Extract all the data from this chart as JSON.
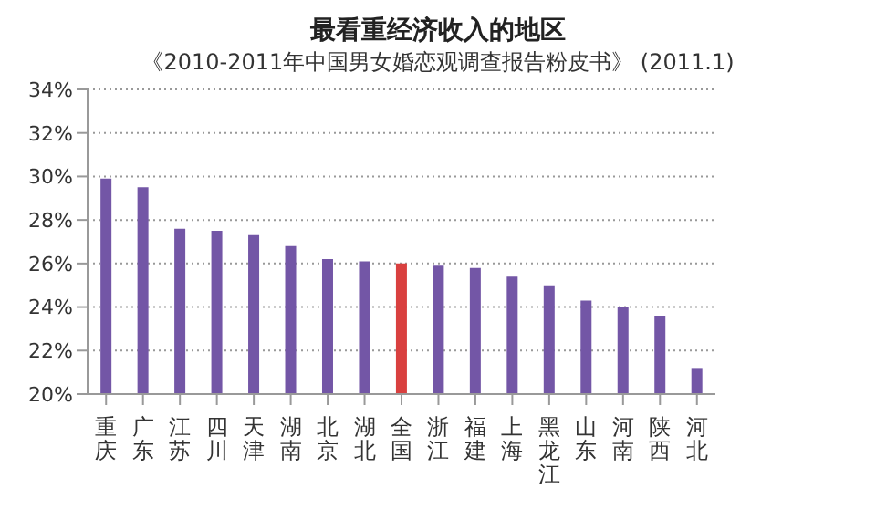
{
  "chart_data": {
    "type": "bar",
    "title": "最看重经济收入的地区",
    "subtitle": "《2010-2011年中国男女婚恋观调查报告粉皮书》 (2011.1)",
    "categories": [
      "重庆",
      "广东",
      "江苏",
      "四川",
      "天津",
      "湖南",
      "北京",
      "湖北",
      "全国",
      "浙江",
      "福建",
      "上海",
      "黑龙江",
      "山东",
      "河南",
      "陕西",
      "河北"
    ],
    "values": [
      29.9,
      29.5,
      27.6,
      27.5,
      27.3,
      26.8,
      26.2,
      26.1,
      26.0,
      25.9,
      25.8,
      25.4,
      25.0,
      24.3,
      24.0,
      23.6,
      21.2
    ],
    "colors": [
      "#7356a6",
      "#7356a6",
      "#7356a6",
      "#7356a6",
      "#7356a6",
      "#7356a6",
      "#7356a6",
      "#7356a6",
      "#d9403f",
      "#7356a6",
      "#7356a6",
      "#7356a6",
      "#7356a6",
      "#7356a6",
      "#7356a6",
      "#7356a6",
      "#7356a6"
    ],
    "ylim": [
      20,
      34
    ],
    "yticks": [
      {
        "value": 20,
        "label": "20%"
      },
      {
        "value": 22,
        "label": "22%"
      },
      {
        "value": 24,
        "label": "24%"
      },
      {
        "value": 26,
        "label": "26%"
      },
      {
        "value": 28,
        "label": "28%"
      },
      {
        "value": 30,
        "label": "30%"
      },
      {
        "value": 32,
        "label": "32%"
      },
      {
        "value": 34,
        "label": "34%"
      }
    ],
    "grid": "y"
  }
}
